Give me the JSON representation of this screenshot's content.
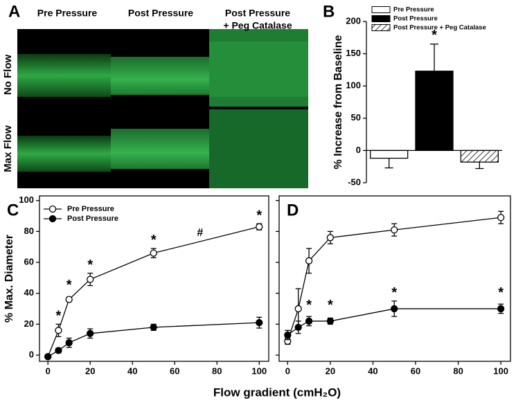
{
  "panel_labels": [
    "A",
    "B",
    "C",
    "D"
  ],
  "panel_a": {
    "columns": [
      "Pre Pressure",
      "Post Pressure",
      "Post Pressure",
      "+ Peg Catalase"
    ],
    "rows": [
      "No Flow",
      "Max Flow"
    ]
  },
  "shared_xlabel": "Flow gradient (cmH₂O)",
  "chart_data": [
    {
      "type": "bar",
      "ylabel": "% Increase from Baseline",
      "ylim": [
        -50,
        200
      ],
      "yticks": [
        -50,
        0,
        50,
        100,
        150,
        200
      ],
      "series": [
        {
          "name": "Pre Pressure",
          "color": "#ffffff",
          "values": [
            -12
          ],
          "errors": [
            15
          ]
        },
        {
          "name": "Post Pressure",
          "color": "#000000",
          "values": [
            123
          ],
          "errors": [
            42
          ]
        },
        {
          "name": "Post Pressure + Peg Catalase",
          "color": "#ffffff",
          "hatch": true,
          "values": [
            -18
          ],
          "errors": [
            10
          ]
        }
      ],
      "annotations": [
        {
          "text": "*",
          "x": 1,
          "y": 178
        }
      ]
    },
    {
      "type": "line",
      "ylabel": "% Max. Diameter",
      "xlim": [
        -4,
        104.5
      ],
      "ylim": [
        -4,
        103
      ],
      "xticks": [
        0,
        20,
        40,
        60,
        80,
        100
      ],
      "yticks": [
        0,
        20,
        40,
        60,
        80,
        100
      ],
      "ytick_labels": true,
      "legend": "upper left",
      "x": [
        0,
        5,
        10,
        20,
        50,
        100
      ],
      "series": [
        {
          "name": "Pre Pressure",
          "color": "#000000",
          "marker_fill": "#ffffff",
          "values": [
            -1,
            16,
            36,
            49,
            66,
            83
          ],
          "errors": [
            1,
            4,
            1.5,
            4,
            3,
            2
          ]
        },
        {
          "name": "Post Pressure",
          "color": "#000000",
          "marker_fill": "#000000",
          "values": [
            -1,
            3,
            8,
            14,
            18,
            21
          ],
          "errors": [
            1,
            1.5,
            3,
            3,
            2,
            3.5
          ]
        }
      ],
      "annotations": [
        {
          "text": "*",
          "x": 5,
          "y": 25
        },
        {
          "text": "*",
          "x": 10,
          "y": 45
        },
        {
          "text": "*",
          "x": 20,
          "y": 58
        },
        {
          "text": "*",
          "x": 50,
          "y": 74
        },
        {
          "text": "#",
          "x": 72,
          "y": 79
        },
        {
          "text": "*",
          "x": 100,
          "y": 90
        }
      ]
    },
    {
      "type": "line",
      "xlim": [
        -4,
        104.5
      ],
      "ylim": [
        -4,
        103
      ],
      "xticks": [
        0,
        20,
        40,
        60,
        80,
        100
      ],
      "yticks": [
        0,
        20,
        40,
        60,
        80,
        100
      ],
      "ytick_labels": false,
      "x": [
        0,
        5,
        10,
        20,
        50,
        100
      ],
      "series": [
        {
          "color": "#000000",
          "marker_fill": "#ffffff",
          "values": [
            9,
            30,
            61,
            76,
            81,
            89
          ],
          "errors": [
            2,
            13,
            8,
            4,
            4,
            4
          ]
        },
        {
          "color": "#000000",
          "marker_fill": "#000000",
          "values": [
            13,
            18,
            22,
            22,
            30,
            30
          ],
          "errors": [
            3,
            4,
            3,
            2,
            5,
            3
          ]
        }
      ],
      "annotations": [
        {
          "text": "*",
          "x": 10,
          "y": 32
        },
        {
          "text": "*",
          "x": 20,
          "y": 32
        },
        {
          "text": "*",
          "x": 50,
          "y": 40
        },
        {
          "text": "*",
          "x": 100,
          "y": 40
        }
      ]
    }
  ]
}
